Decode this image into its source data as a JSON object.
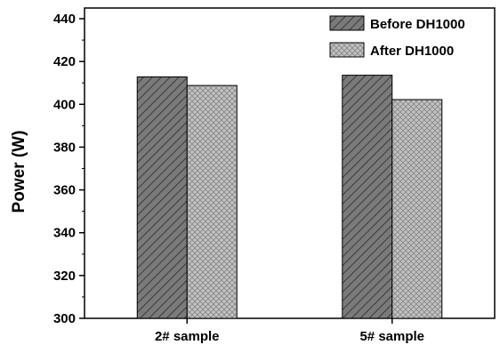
{
  "chart_data": {
    "type": "bar",
    "title": "",
    "xlabel": "",
    "ylabel": "Power (W)",
    "ylim": [
      300,
      445
    ],
    "yticks": [
      300,
      320,
      340,
      360,
      380,
      400,
      420,
      440
    ],
    "categories": [
      "2# sample",
      "5# sample"
    ],
    "series": [
      {
        "name": "Before DH1000",
        "values": [
          412.8,
          413.6
        ],
        "color": "#7a7a7a",
        "pattern": "diagonal-hatch"
      },
      {
        "name": "After DH1000",
        "values": [
          408.8,
          402.2
        ],
        "color": "#c4c4c4",
        "pattern": "cross-hatch"
      }
    ],
    "legend_position": "top-right",
    "grid": false
  }
}
